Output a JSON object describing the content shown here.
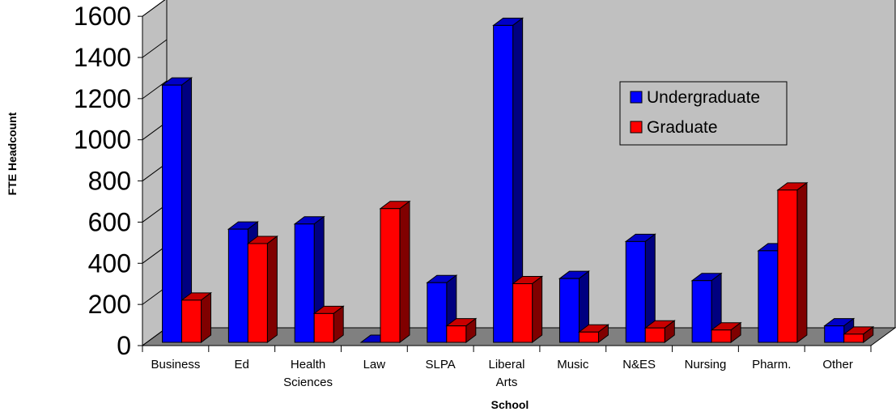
{
  "chart_data": {
    "type": "bar",
    "style": "3d-clustered-column",
    "categories": [
      [
        "Business"
      ],
      [
        "Ed"
      ],
      [
        "Health",
        "Sciences"
      ],
      [
        "Law"
      ],
      [
        "SLPA"
      ],
      [
        "Liberal",
        "Arts"
      ],
      [
        "Music"
      ],
      [
        "N&ES"
      ],
      [
        "Nursing"
      ],
      [
        "Pharm."
      ],
      [
        "Other"
      ]
    ],
    "series": [
      {
        "name": "Undergraduate",
        "color": "#0000ff",
        "side_color": "#000080",
        "top_color": "#0000c8",
        "values": [
          1250,
          550,
          575,
          0,
          290,
          1540,
          310,
          490,
          300,
          445,
          80
        ]
      },
      {
        "name": "Graduate",
        "color": "#ff0000",
        "side_color": "#800000",
        "top_color": "#c80000",
        "values": [
          205,
          480,
          140,
          650,
          80,
          285,
          50,
          70,
          60,
          740,
          40
        ]
      }
    ],
    "title": "",
    "xlabel": "School",
    "ylabel": "FTE Headcount",
    "ylim": [
      0,
      1600
    ],
    "yticks": [
      "0",
      "200",
      "400",
      "600",
      "800",
      "1000",
      "1200",
      "1400",
      "1600"
    ],
    "grid": false,
    "legend_position": "top-right",
    "wall_color": "#c0c0c0",
    "floor_color": "#808080"
  }
}
